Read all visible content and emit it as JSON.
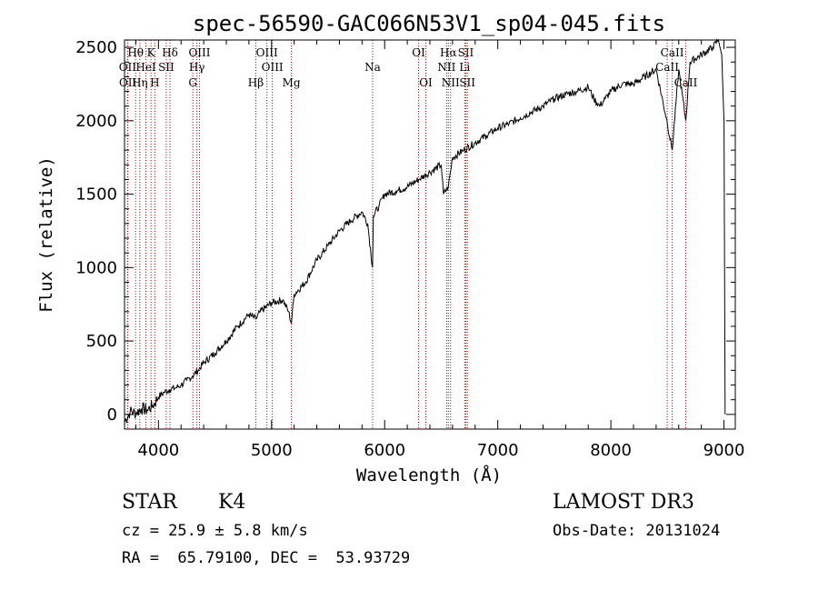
{
  "chart_data": {
    "type": "line",
    "title": "spec-56590-GAC066N53V1_sp04-045.fits",
    "xlabel": "Wavelength (Å)",
    "ylabel": "Flux (relative)",
    "xlim": [
      3700,
      9100
    ],
    "ylim": [
      -100,
      2550
    ],
    "xticks": [
      4000,
      5000,
      6000,
      7000,
      8000,
      9000
    ],
    "xtick_labels": [
      "4000",
      "5000",
      "6000",
      "7000",
      "8000",
      "9000"
    ],
    "yticks": [
      0,
      500,
      1000,
      1500,
      2000,
      2500
    ],
    "ytick_labels": [
      "0",
      "500",
      "1000",
      "1500",
      "2000",
      "2500"
    ],
    "grid": false,
    "series": [
      {
        "name": "flux",
        "x": [
          3700,
          3750,
          3800,
          3850,
          3900,
          3950,
          4000,
          4050,
          4100,
          4150,
          4200,
          4250,
          4300,
          4350,
          4400,
          4500,
          4600,
          4700,
          4800,
          4861,
          4900,
          5000,
          5100,
          5150,
          5175,
          5200,
          5300,
          5400,
          5500,
          5600,
          5700,
          5800,
          5850,
          5893,
          5900,
          5950,
          6000,
          6100,
          6200,
          6300,
          6400,
          6500,
          6520,
          6563,
          6600,
          6700,
          6800,
          6900,
          7000,
          7100,
          7200,
          7300,
          7400,
          7500,
          7600,
          7700,
          7800,
          7850,
          7900,
          7950,
          8000,
          8100,
          8200,
          8300,
          8400,
          8498,
          8542,
          8600,
          8662,
          8700,
          8800,
          8900,
          8950,
          8980,
          9000,
          9010
        ],
        "y": [
          -50,
          20,
          10,
          40,
          30,
          60,
          120,
          150,
          170,
          180,
          200,
          230,
          260,
          300,
          350,
          420,
          500,
          600,
          680,
          650,
          700,
          760,
          780,
          700,
          620,
          820,
          900,
          1050,
          1150,
          1250,
          1320,
          1380,
          1300,
          1000,
          1350,
          1420,
          1500,
          1520,
          1550,
          1600,
          1650,
          1700,
          1500,
          1550,
          1750,
          1800,
          1850,
          1900,
          1950,
          1980,
          2020,
          2060,
          2100,
          2150,
          2180,
          2200,
          2230,
          2150,
          2100,
          2150,
          2200,
          2250,
          2250,
          2300,
          2350,
          1990,
          1800,
          2350,
          2000,
          2400,
          2450,
          2500,
          2550,
          2450,
          2000,
          0
        ]
      }
    ],
    "line_markers": [
      {
        "name": "Hθ",
        "x": 3798,
        "row": 1
      },
      {
        "name": "K",
        "x": 3934,
        "row": 1
      },
      {
        "name": "Hδ",
        "x": 4102,
        "row": 1
      },
      {
        "name": "OII",
        "x": 3727,
        "row": 2
      },
      {
        "name": "HeI",
        "x": 3889,
        "row": 2
      },
      {
        "name": "SII",
        "x": 4069,
        "row": 2
      },
      {
        "name": "OIII",
        "x": 4363,
        "row": 1
      },
      {
        "name": "Hγ",
        "x": 4340,
        "row": 2
      },
      {
        "name": "OIII",
        "x": 4959,
        "row": 1
      },
      {
        "name": "OIII",
        "x": 5007,
        "row": 2
      },
      {
        "name": "OII",
        "x": 3729,
        "row": 3
      },
      {
        "name": "Hη",
        "x": 3835,
        "row": 3
      },
      {
        "name": "H",
        "x": 3968,
        "row": 3
      },
      {
        "name": "G",
        "x": 4304,
        "row": 3
      },
      {
        "name": "Hβ",
        "x": 4861,
        "row": 3
      },
      {
        "name": "Mg",
        "x": 5175,
        "row": 3
      },
      {
        "name": "Na",
        "x": 5893,
        "row": 2
      },
      {
        "name": "OI",
        "x": 6300,
        "row": 1
      },
      {
        "name": "OI",
        "x": 6364,
        "row": 3
      },
      {
        "name": "Hα",
        "x": 6563,
        "row": 1
      },
      {
        "name": "SII",
        "x": 6717,
        "row": 1
      },
      {
        "name": "NII",
        "x": 6548,
        "row": 2
      },
      {
        "name": "Li",
        "x": 6708,
        "row": 2
      },
      {
        "name": "NII",
        "x": 6583,
        "row": 3
      },
      {
        "name": "SII",
        "x": 6731,
        "row": 3
      },
      {
        "name": "CaII",
        "x": 8542,
        "row": 1
      },
      {
        "name": "CaII",
        "x": 8498,
        "row": 2
      },
      {
        "name": "CaII",
        "x": 8662,
        "row": 3
      }
    ]
  },
  "info": {
    "object_class": "STAR",
    "subclass": "K4",
    "survey": "LAMOST DR3",
    "velocity": "cz = 25.9 ± 5.8 km/s",
    "obs_date": "Obs-Date: 20131024",
    "coords": "RA =  65.79100, DEC =  53.93729"
  }
}
